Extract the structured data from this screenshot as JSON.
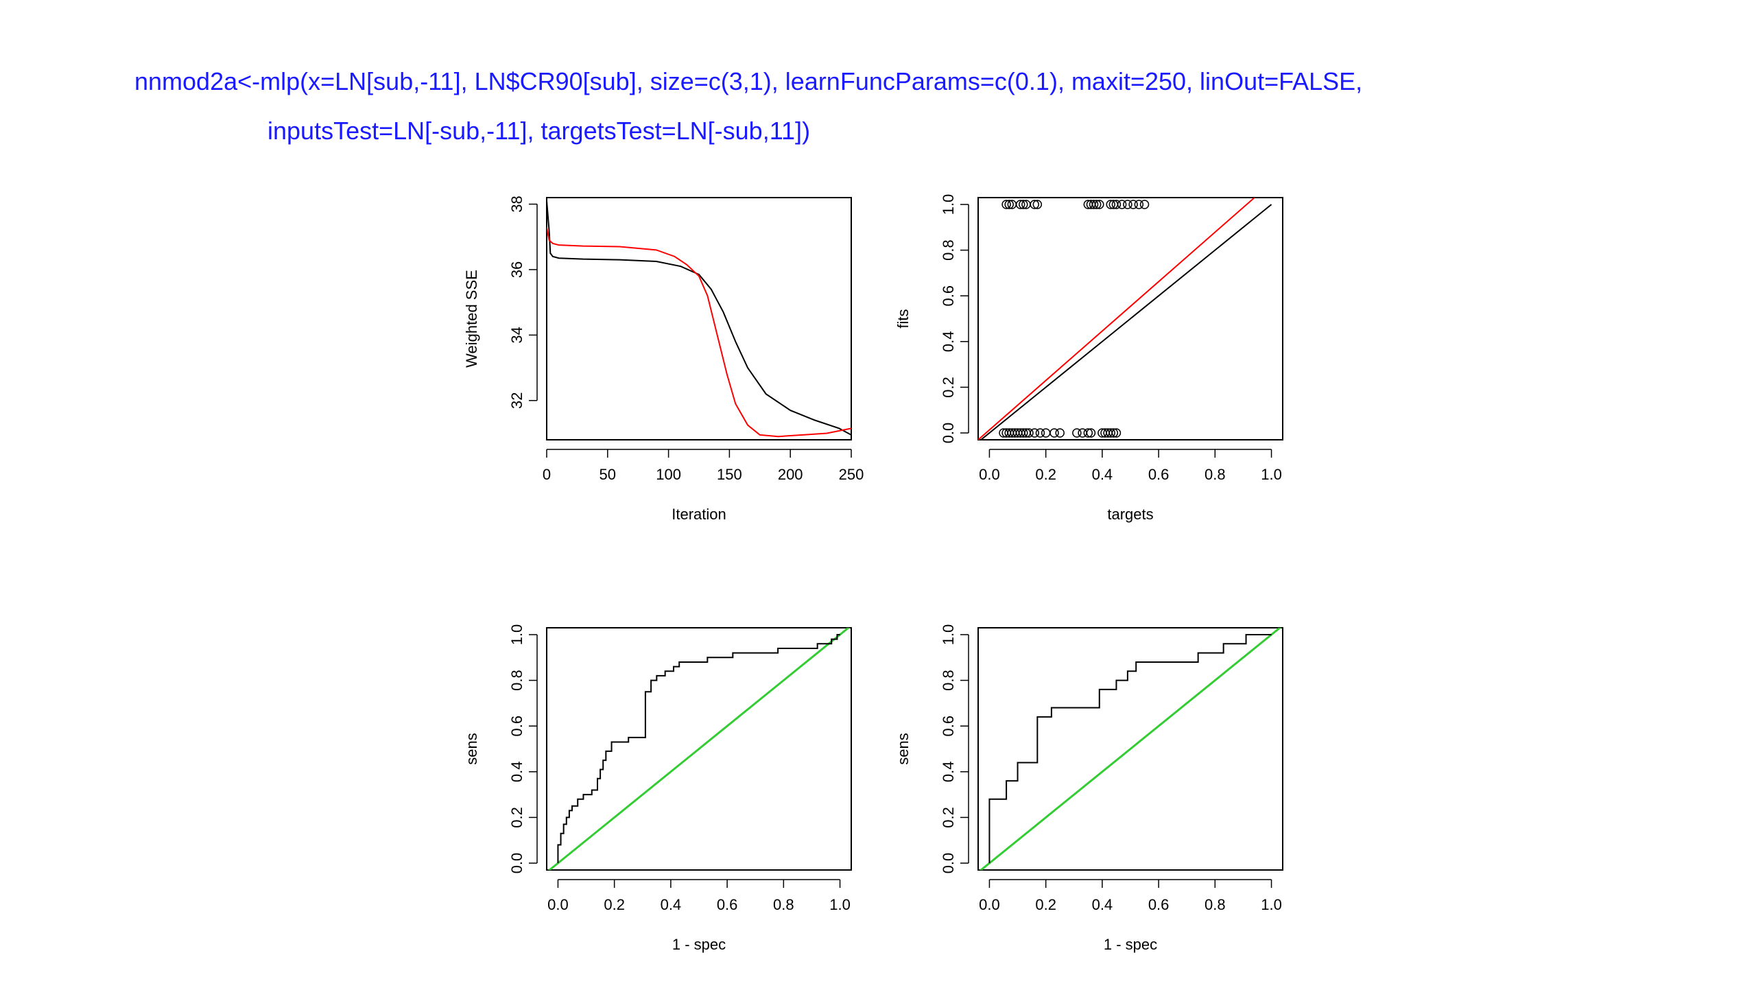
{
  "code": {
    "line1": "nnmod2a<-mlp(x=LN[sub,-11], LN$CR90[sub], size=c(3,1), learnFuncParams=c(0.1), maxit=250, linOut=FALSE,",
    "line2": "inputsTest=LN[-sub,-11], targetsTest=LN[-sub,11])"
  },
  "colors": {
    "train": "#000000",
    "test": "#ff0000",
    "diagonal": "#33cc33"
  },
  "chart_data": [
    {
      "type": "line",
      "xlabel": "Iteration",
      "ylabel": "Weighted SSE",
      "xlim": [
        0,
        250
      ],
      "ylim": [
        30.8,
        38.2
      ],
      "xticks": [
        "0",
        "50",
        "100",
        "150",
        "200",
        "250"
      ],
      "yticks": [
        "32",
        "34",
        "36",
        "38"
      ],
      "series": [
        {
          "color": "#000000",
          "x": [
            0,
            2,
            3,
            5,
            10,
            30,
            60,
            90,
            110,
            125,
            135,
            145,
            155,
            165,
            180,
            200,
            220,
            240,
            250
          ],
          "y": [
            38.1,
            37.2,
            36.5,
            36.4,
            36.35,
            36.32,
            36.3,
            36.25,
            36.1,
            35.85,
            35.4,
            34.7,
            33.8,
            33.0,
            32.2,
            31.7,
            31.4,
            31.15,
            30.95
          ]
        },
        {
          "color": "#ff0000",
          "x": [
            0,
            2,
            5,
            10,
            30,
            60,
            90,
            105,
            115,
            125,
            132,
            140,
            148,
            155,
            165,
            175,
            190,
            210,
            230,
            250
          ],
          "y": [
            37.3,
            36.9,
            36.8,
            36.75,
            36.72,
            36.7,
            36.6,
            36.4,
            36.15,
            35.8,
            35.2,
            34.0,
            32.8,
            31.9,
            31.25,
            30.95,
            30.9,
            30.95,
            31.0,
            31.15
          ]
        }
      ]
    },
    {
      "type": "scatter",
      "xlabel": "targets",
      "ylabel": "fits",
      "xlim": [
        -0.04,
        1.04
      ],
      "ylim": [
        -0.03,
        1.03
      ],
      "xticks": [
        "0.0",
        "0.2",
        "0.4",
        "0.6",
        "0.8",
        "1.0"
      ],
      "yticks": [
        "0.0",
        "0.2",
        "0.4",
        "0.6",
        "0.8",
        "1.0"
      ],
      "points_y1": [
        0.06,
        0.07,
        0.08,
        0.11,
        0.12,
        0.13,
        0.16,
        0.17,
        0.35,
        0.36,
        0.37,
        0.38,
        0.39,
        0.43,
        0.44,
        0.45,
        0.47,
        0.49,
        0.51,
        0.53,
        0.55
      ],
      "points_y0": [
        0.05,
        0.06,
        0.07,
        0.08,
        0.09,
        0.1,
        0.11,
        0.12,
        0.13,
        0.14,
        0.16,
        0.18,
        0.2,
        0.23,
        0.25,
        0.31,
        0.33,
        0.35,
        0.36,
        0.4,
        0.41,
        0.42,
        0.43,
        0.44,
        0.45
      ],
      "lines": [
        {
          "color": "#000000",
          "x": [
            -0.04,
            1.0
          ],
          "y": [
            -0.04,
            1.0
          ]
        },
        {
          "color": "#ff0000",
          "x": [
            -0.04,
            0.94
          ],
          "y": [
            -0.03,
            1.03
          ]
        }
      ]
    },
    {
      "type": "line",
      "xlabel": "1 - spec",
      "ylabel": "sens",
      "xlim": [
        -0.04,
        1.04
      ],
      "ylim": [
        -0.03,
        1.03
      ],
      "xticks": [
        "0.0",
        "0.2",
        "0.4",
        "0.6",
        "0.8",
        "1.0"
      ],
      "yticks": [
        "0.0",
        "0.2",
        "0.4",
        "0.6",
        "0.8",
        "1.0"
      ],
      "roc": [
        [
          0,
          0
        ],
        [
          0,
          0.08
        ],
        [
          0.01,
          0.08
        ],
        [
          0.01,
          0.13
        ],
        [
          0.02,
          0.13
        ],
        [
          0.02,
          0.17
        ],
        [
          0.03,
          0.17
        ],
        [
          0.03,
          0.2
        ],
        [
          0.04,
          0.2
        ],
        [
          0.04,
          0.23
        ],
        [
          0.05,
          0.23
        ],
        [
          0.05,
          0.25
        ],
        [
          0.07,
          0.25
        ],
        [
          0.07,
          0.28
        ],
        [
          0.09,
          0.28
        ],
        [
          0.09,
          0.3
        ],
        [
          0.12,
          0.3
        ],
        [
          0.12,
          0.32
        ],
        [
          0.14,
          0.32
        ],
        [
          0.14,
          0.37
        ],
        [
          0.15,
          0.37
        ],
        [
          0.15,
          0.41
        ],
        [
          0.16,
          0.41
        ],
        [
          0.16,
          0.45
        ],
        [
          0.17,
          0.45
        ],
        [
          0.17,
          0.49
        ],
        [
          0.19,
          0.49
        ],
        [
          0.19,
          0.53
        ],
        [
          0.25,
          0.53
        ],
        [
          0.25,
          0.55
        ],
        [
          0.31,
          0.55
        ],
        [
          0.31,
          0.75
        ],
        [
          0.33,
          0.75
        ],
        [
          0.33,
          0.8
        ],
        [
          0.35,
          0.8
        ],
        [
          0.35,
          0.82
        ],
        [
          0.38,
          0.82
        ],
        [
          0.38,
          0.84
        ],
        [
          0.41,
          0.84
        ],
        [
          0.41,
          0.86
        ],
        [
          0.43,
          0.86
        ],
        [
          0.43,
          0.88
        ],
        [
          0.53,
          0.88
        ],
        [
          0.53,
          0.9
        ],
        [
          0.62,
          0.9
        ],
        [
          0.62,
          0.92
        ],
        [
          0.78,
          0.92
        ],
        [
          0.78,
          0.94
        ],
        [
          0.92,
          0.94
        ],
        [
          0.92,
          0.96
        ],
        [
          0.97,
          0.96
        ],
        [
          0.97,
          0.98
        ],
        [
          0.99,
          0.98
        ],
        [
          0.99,
          1.0
        ],
        [
          1.0,
          1.0
        ]
      ],
      "diagonal": [
        [
          -0.04,
          -0.04
        ],
        [
          1.04,
          1.04
        ]
      ]
    },
    {
      "type": "line",
      "xlabel": "1 - spec",
      "ylabel": "sens",
      "xlim": [
        -0.04,
        1.04
      ],
      "ylim": [
        -0.03,
        1.03
      ],
      "xticks": [
        "0.0",
        "0.2",
        "0.4",
        "0.6",
        "0.8",
        "1.0"
      ],
      "yticks": [
        "0.0",
        "0.2",
        "0.4",
        "0.6",
        "0.8",
        "1.0"
      ],
      "roc": [
        [
          0,
          0
        ],
        [
          0,
          0.28
        ],
        [
          0.06,
          0.28
        ],
        [
          0.06,
          0.36
        ],
        [
          0.1,
          0.36
        ],
        [
          0.1,
          0.44
        ],
        [
          0.17,
          0.44
        ],
        [
          0.17,
          0.64
        ],
        [
          0.22,
          0.64
        ],
        [
          0.22,
          0.68
        ],
        [
          0.39,
          0.68
        ],
        [
          0.39,
          0.76
        ],
        [
          0.45,
          0.76
        ],
        [
          0.45,
          0.8
        ],
        [
          0.49,
          0.8
        ],
        [
          0.49,
          0.84
        ],
        [
          0.52,
          0.84
        ],
        [
          0.52,
          0.88
        ],
        [
          0.74,
          0.88
        ],
        [
          0.74,
          0.92
        ],
        [
          0.83,
          0.92
        ],
        [
          0.83,
          0.96
        ],
        [
          0.91,
          0.96
        ],
        [
          0.91,
          1.0
        ],
        [
          1.0,
          1.0
        ]
      ],
      "diagonal": [
        [
          -0.04,
          -0.04
        ],
        [
          1.04,
          1.04
        ]
      ]
    }
  ]
}
